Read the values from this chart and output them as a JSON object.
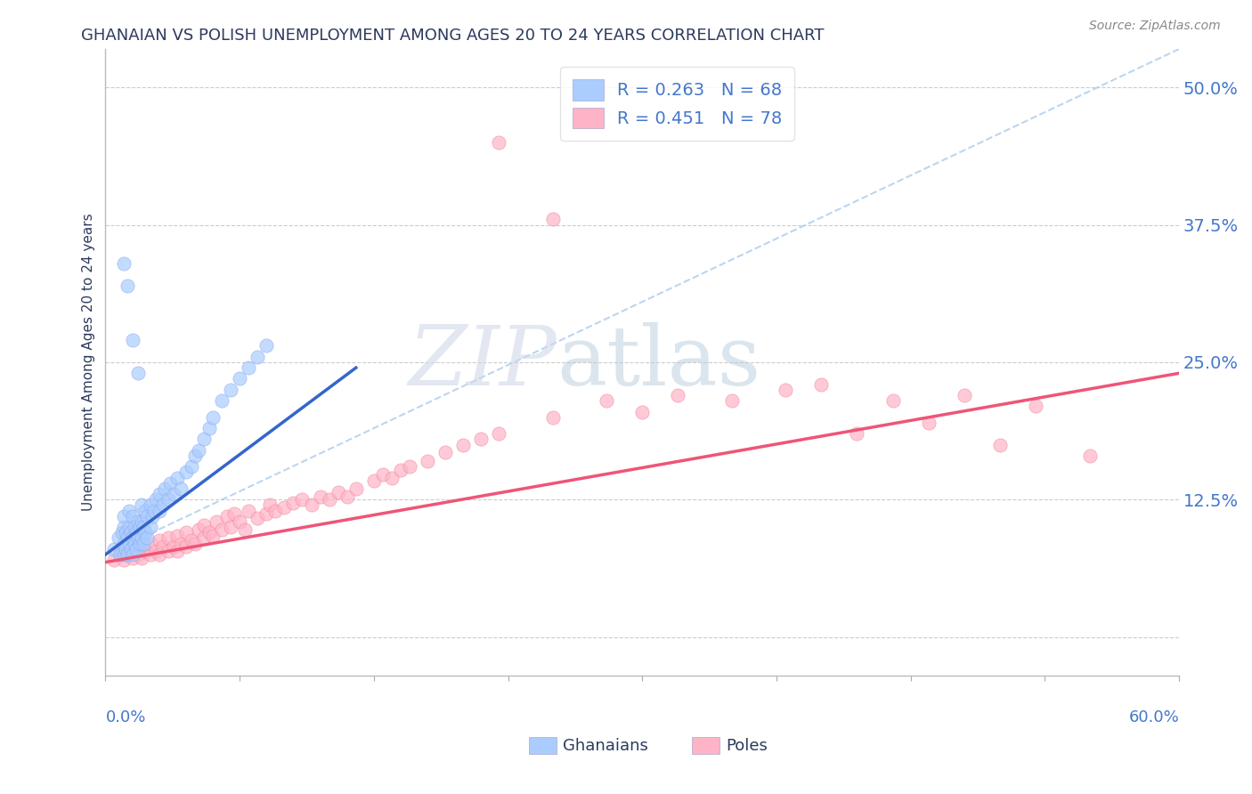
{
  "title": "GHANAIAN VS POLISH UNEMPLOYMENT AMONG AGES 20 TO 24 YEARS CORRELATION CHART",
  "source": "Source: ZipAtlas.com",
  "xmin": 0.0,
  "xmax": 0.6,
  "ymin": -0.035,
  "ymax": 0.535,
  "ylabel_ticks": [
    0.0,
    0.125,
    0.25,
    0.375,
    0.5
  ],
  "ylabel_tick_labels": [
    "",
    "12.5%",
    "25.0%",
    "37.5%",
    "50.0%"
  ],
  "watermark_zip": "ZIP",
  "watermark_atlas": "atlas",
  "legend_ghanaian_r": "R = 0.263",
  "legend_ghanaian_n": "N = 68",
  "legend_poles_r": "R = 0.451",
  "legend_poles_n": "N = 78",
  "color_ghanaian": "#aaccff",
  "color_ghanaian_edge": "#88aaee",
  "color_poles": "#ffb3c6",
  "color_poles_edge": "#ee8899",
  "color_ghanaian_line": "#3366cc",
  "color_poles_line": "#ee5577",
  "color_dashed_line": "#aaccee",
  "color_title": "#2d3a5e",
  "color_axis_labels": "#4477cc",
  "color_source": "#888888",
  "color_grid": "#cccccc",
  "ghanaian_x": [
    0.005,
    0.007,
    0.008,
    0.009,
    0.01,
    0.01,
    0.01,
    0.01,
    0.011,
    0.011,
    0.012,
    0.012,
    0.013,
    0.013,
    0.013,
    0.014,
    0.014,
    0.015,
    0.015,
    0.015,
    0.016,
    0.016,
    0.017,
    0.017,
    0.018,
    0.018,
    0.019,
    0.019,
    0.02,
    0.02,
    0.02,
    0.021,
    0.021,
    0.022,
    0.022,
    0.023,
    0.023,
    0.025,
    0.025,
    0.026,
    0.027,
    0.028,
    0.03,
    0.03,
    0.032,
    0.033,
    0.035,
    0.036,
    0.038,
    0.04,
    0.042,
    0.045,
    0.048,
    0.05,
    0.052,
    0.055,
    0.058,
    0.06,
    0.065,
    0.07,
    0.075,
    0.08,
    0.085,
    0.09,
    0.01,
    0.012,
    0.015,
    0.018
  ],
  "ghanaian_y": [
    0.08,
    0.09,
    0.075,
    0.095,
    0.075,
    0.085,
    0.1,
    0.11,
    0.08,
    0.095,
    0.075,
    0.09,
    0.085,
    0.1,
    0.115,
    0.08,
    0.095,
    0.075,
    0.09,
    0.11,
    0.085,
    0.1,
    0.08,
    0.095,
    0.09,
    0.105,
    0.085,
    0.1,
    0.09,
    0.105,
    0.12,
    0.085,
    0.1,
    0.095,
    0.115,
    0.09,
    0.11,
    0.1,
    0.12,
    0.11,
    0.115,
    0.125,
    0.115,
    0.13,
    0.12,
    0.135,
    0.125,
    0.14,
    0.13,
    0.145,
    0.135,
    0.15,
    0.155,
    0.165,
    0.17,
    0.18,
    0.19,
    0.2,
    0.215,
    0.225,
    0.235,
    0.245,
    0.255,
    0.265,
    0.34,
    0.32,
    0.27,
    0.24
  ],
  "poles_x": [
    0.005,
    0.008,
    0.01,
    0.012,
    0.015,
    0.015,
    0.018,
    0.02,
    0.02,
    0.022,
    0.025,
    0.025,
    0.028,
    0.03,
    0.03,
    0.032,
    0.035,
    0.035,
    0.038,
    0.04,
    0.04,
    0.042,
    0.045,
    0.045,
    0.048,
    0.05,
    0.052,
    0.055,
    0.055,
    0.058,
    0.06,
    0.062,
    0.065,
    0.068,
    0.07,
    0.072,
    0.075,
    0.078,
    0.08,
    0.085,
    0.09,
    0.092,
    0.095,
    0.1,
    0.105,
    0.11,
    0.115,
    0.12,
    0.125,
    0.13,
    0.135,
    0.14,
    0.15,
    0.155,
    0.16,
    0.165,
    0.17,
    0.18,
    0.19,
    0.2,
    0.21,
    0.22,
    0.25,
    0.28,
    0.3,
    0.32,
    0.35,
    0.38,
    0.4,
    0.42,
    0.44,
    0.46,
    0.48,
    0.5,
    0.52,
    0.55,
    0.22,
    0.25
  ],
  "poles_y": [
    0.07,
    0.075,
    0.07,
    0.075,
    0.072,
    0.08,
    0.075,
    0.072,
    0.082,
    0.078,
    0.075,
    0.085,
    0.078,
    0.075,
    0.088,
    0.082,
    0.078,
    0.09,
    0.082,
    0.078,
    0.092,
    0.085,
    0.082,
    0.095,
    0.088,
    0.085,
    0.098,
    0.09,
    0.102,
    0.095,
    0.092,
    0.105,
    0.098,
    0.11,
    0.1,
    0.112,
    0.105,
    0.098,
    0.115,
    0.108,
    0.112,
    0.12,
    0.115,
    0.118,
    0.122,
    0.125,
    0.12,
    0.128,
    0.125,
    0.132,
    0.128,
    0.135,
    0.142,
    0.148,
    0.145,
    0.152,
    0.155,
    0.16,
    0.168,
    0.175,
    0.18,
    0.185,
    0.2,
    0.215,
    0.205,
    0.22,
    0.215,
    0.225,
    0.23,
    0.185,
    0.215,
    0.195,
    0.22,
    0.175,
    0.21,
    0.165,
    0.45,
    0.38
  ],
  "ghanaian_line_x": [
    0.0,
    0.14
  ],
  "ghanaian_line_y": [
    0.075,
    0.245
  ],
  "dashed_line_x": [
    0.0,
    0.6
  ],
  "dashed_line_y": [
    0.075,
    0.535
  ],
  "poles_line_x": [
    0.0,
    0.6
  ],
  "poles_line_y": [
    0.068,
    0.24
  ]
}
